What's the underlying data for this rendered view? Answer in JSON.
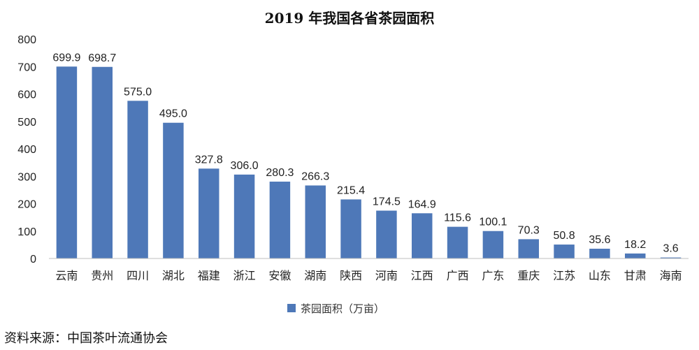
{
  "chart_data": {
    "type": "bar",
    "title": "2019 年我国各省茶园面积",
    "categories": [
      "云南",
      "贵州",
      "四川",
      "湖北",
      "福建",
      "浙江",
      "安徽",
      "湖南",
      "陕西",
      "河南",
      "江西",
      "广西",
      "广东",
      "重庆",
      "江苏",
      "山东",
      "甘肃",
      "海南"
    ],
    "series": [
      {
        "name": "茶园面积（万亩）",
        "values": [
          699.9,
          698.7,
          575.0,
          495.0,
          327.8,
          306.0,
          280.3,
          266.3,
          215.4,
          174.5,
          164.9,
          115.6,
          100.1,
          70.3,
          50.8,
          35.6,
          18.2,
          3.6
        ],
        "labels": [
          "699.9",
          "698.7",
          "575.0",
          "495.0",
          "327.8",
          "306.0",
          "280.3",
          "266.3",
          "215.4",
          "174.5",
          "164.9",
          "115.6",
          "100.1",
          "70.3",
          "50.8",
          "35.6",
          "18.2",
          "3.6"
        ],
        "color": "#4e78b8"
      }
    ],
    "ylim": [
      0,
      800
    ],
    "yticks": [
      0,
      100,
      200,
      300,
      400,
      500,
      600,
      700,
      800
    ],
    "grid": false,
    "legend_position": "bottom"
  },
  "source": "资料来源：中国茶叶流通协会"
}
